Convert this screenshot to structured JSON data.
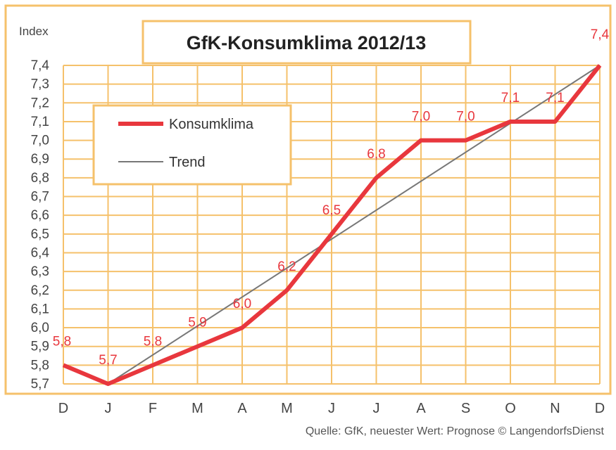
{
  "chart_data": {
    "type": "line",
    "title": "GfK-Konsumklima 2012/13",
    "ylabel": "Index",
    "categories": [
      "D",
      "J",
      "F",
      "M",
      "A",
      "M",
      "J",
      "J",
      "A",
      "S",
      "O",
      "N",
      "D"
    ],
    "ylim": [
      5.7,
      7.4
    ],
    "yticks": [
      "5,7",
      "5,8",
      "5,9",
      "6,0",
      "6,1",
      "6,2",
      "6,3",
      "6,4",
      "6,5",
      "6,6",
      "6,7",
      "6,8",
      "6,9",
      "7,0",
      "7,1",
      "7,2",
      "7,3",
      "7,4"
    ],
    "series": [
      {
        "name": "Konsumklima",
        "values": [
          5.8,
          5.7,
          5.8,
          5.9,
          6.0,
          6.2,
          6.5,
          6.8,
          7.0,
          7.0,
          7.1,
          7.1,
          7.4
        ],
        "labels": [
          "5,8",
          "5,7",
          "5,8",
          "5,9",
          "6,0",
          "6,2",
          "6,5",
          "6,8",
          "7,0",
          "7,0",
          "7,1",
          "7,1",
          "7,4"
        ],
        "color": "#e8373d"
      },
      {
        "name": "Trend",
        "values": [
          null,
          5.7,
          null,
          null,
          null,
          null,
          null,
          null,
          null,
          null,
          null,
          null,
          7.4
        ],
        "color": "#777777"
      }
    ],
    "grid": true,
    "grid_color": "#f5c16b",
    "legend_position": "top-left",
    "source": "Quelle: GfK, neuester Wert: Prognose © LangendorfsDienst"
  }
}
